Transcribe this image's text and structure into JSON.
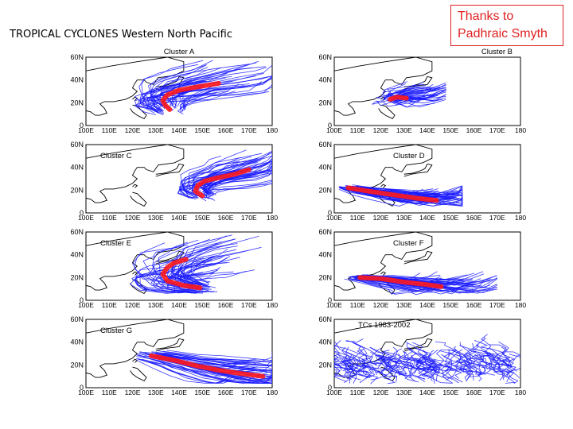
{
  "slide": {
    "title": "TROPICAL CYCLONES Western North Pacific",
    "credit_line1": "Thanks to",
    "credit_line2": "Padhraic Smyth"
  },
  "chart_data": [
    {
      "type": "trajectory-map",
      "title": "Cluster A",
      "title_pos": "top-center",
      "lat_ticks": [
        "0",
        "20N",
        "40N",
        "60N"
      ],
      "lon_ticks": [
        "100E",
        "110E",
        "120E",
        "130E",
        "140E",
        "150E",
        "160E",
        "170E",
        "180"
      ],
      "xlim": [
        100,
        180
      ],
      "ylim": [
        0,
        60
      ],
      "mean_track": [
        [
          136,
          14
        ],
        [
          134,
          18
        ],
        [
          133,
          22
        ],
        [
          135,
          27
        ],
        [
          140,
          31
        ],
        [
          148,
          34
        ],
        [
          157,
          37
        ]
      ],
      "spread": {
        "lon": [
          112,
          180
        ],
        "lat": [
          5,
          50
        ]
      }
    },
    {
      "type": "trajectory-map",
      "title": "Cluster B",
      "title_pos": "top-right",
      "lat_ticks": [
        "0",
        "20N",
        "40N",
        "60N"
      ],
      "lon_ticks": [
        "100E",
        "110E",
        "120E",
        "130E",
        "140E",
        "150E",
        "160E",
        "170E",
        "180"
      ],
      "xlim": [
        100,
        180
      ],
      "ylim": [
        0,
        60
      ],
      "mean_track": [
        [
          124,
          23
        ],
        [
          127,
          25
        ],
        [
          131,
          24
        ]
      ],
      "spread": {
        "lon": [
          105,
          148
        ],
        "lat": [
          10,
          36
        ]
      }
    },
    {
      "type": "trajectory-map",
      "title": "Cluster C",
      "title_pos": "top-left",
      "lat_ticks": [
        "0",
        "20N",
        "40N",
        "60N"
      ],
      "lon_ticks": [
        "100E",
        "110E",
        "120E",
        "130E",
        "140E",
        "150E",
        "160E",
        "170E",
        "180"
      ],
      "xlim": [
        100,
        180
      ],
      "ylim": [
        0,
        60
      ],
      "mean_track": [
        [
          150,
          15
        ],
        [
          147,
          19
        ],
        [
          148,
          24
        ],
        [
          151,
          28
        ],
        [
          157,
          31
        ],
        [
          164,
          34
        ],
        [
          170,
          38
        ]
      ],
      "spread": {
        "lon": [
          128,
          180
        ],
        "lat": [
          8,
          48
        ]
      }
    },
    {
      "type": "trajectory-map",
      "title": "Cluster D",
      "title_pos": "top-right",
      "lat_ticks": [
        "0",
        "20N",
        "40N",
        "60N"
      ],
      "lon_ticks": [
        "100E",
        "110E",
        "120E",
        "130E",
        "140E",
        "150E",
        "160E",
        "170E",
        "180"
      ],
      "xlim": [
        100,
        180
      ],
      "ylim": [
        0,
        60
      ],
      "mean_track": [
        [
          106,
          22
        ],
        [
          115,
          19
        ],
        [
          125,
          16
        ],
        [
          135,
          13
        ],
        [
          144,
          11
        ]
      ],
      "spread": {
        "lon": [
          102,
          155
        ],
        "lat": [
          6,
          26
        ]
      }
    },
    {
      "type": "trajectory-map",
      "title": "Cluster E",
      "title_pos": "top-left",
      "lat_ticks": [
        "0",
        "20N",
        "40N",
        "60N"
      ],
      "lon_ticks": [
        "100E",
        "110E",
        "120E",
        "130E",
        "140E",
        "150E",
        "160E",
        "170E",
        "180"
      ],
      "xlim": [
        100,
        180
      ],
      "ylim": [
        0,
        60
      ],
      "mean_track": [
        [
          149,
          11
        ],
        [
          142,
          13
        ],
        [
          135,
          17
        ],
        [
          133,
          23
        ],
        [
          135,
          29
        ],
        [
          138,
          33
        ],
        [
          143,
          36
        ]
      ],
      "spread": {
        "lon": [
          110,
          180
        ],
        "lat": [
          5,
          55
        ]
      }
    },
    {
      "type": "trajectory-map",
      "title": "Cluster F",
      "title_pos": "top-right",
      "lat_ticks": [
        "0",
        "20N",
        "40N",
        "60N"
      ],
      "lon_ticks": [
        "100E",
        "110E",
        "120E",
        "130E",
        "140E",
        "150E",
        "160E",
        "170E",
        "180"
      ],
      "xlim": [
        100,
        180
      ],
      "ylim": [
        0,
        60
      ],
      "mean_track": [
        [
          111,
          20
        ],
        [
          120,
          19
        ],
        [
          130,
          16
        ],
        [
          139,
          14
        ],
        [
          146,
          12
        ]
      ],
      "spread": {
        "lon": [
          104,
          170
        ],
        "lat": [
          5,
          26
        ]
      }
    },
    {
      "type": "trajectory-map",
      "title": "Cluster G",
      "title_pos": "top-left",
      "lat_ticks": [
        "0",
        "20N",
        "40N",
        "60N"
      ],
      "lon_ticks": [
        "100E",
        "110E",
        "120E",
        "130E",
        "140E",
        "150E",
        "160E",
        "170E",
        "180"
      ],
      "xlim": [
        100,
        180
      ],
      "ylim": [
        0,
        60
      ],
      "mean_track": [
        [
          128,
          28
        ],
        [
          138,
          24
        ],
        [
          148,
          19
        ],
        [
          158,
          15
        ],
        [
          168,
          12
        ],
        [
          176,
          10
        ]
      ],
      "spread": {
        "lon": [
          112,
          180
        ],
        "lat": [
          4,
          50
        ]
      }
    },
    {
      "type": "trajectory-map",
      "title": "TCs 1983-2002",
      "title_pos": "top-left",
      "lat_ticks": [
        "0",
        "20N",
        "40N",
        "60N"
      ],
      "lon_ticks": [
        "100E",
        "110E",
        "120E",
        "130E",
        "140E",
        "150E",
        "160E",
        "170E",
        "180"
      ],
      "xlim": [
        100,
        180
      ],
      "ylim": [
        0,
        60
      ],
      "mean_track": [],
      "spread": {
        "lon": [
          103,
          180
        ],
        "lat": [
          3,
          48
        ]
      }
    }
  ]
}
